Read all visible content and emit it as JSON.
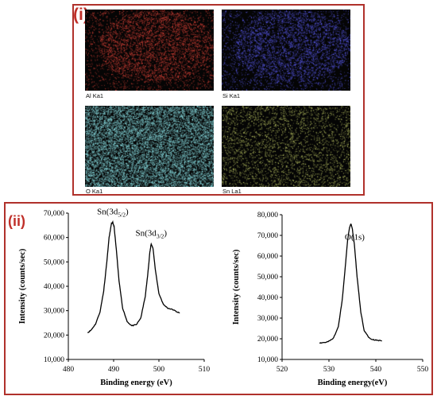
{
  "panel_i": {
    "label": "(i)",
    "maps": [
      {
        "label": "Al Ka1",
        "color": "#e0453a"
      },
      {
        "label": "Si Ka1",
        "color": "#5b5cf0"
      },
      {
        "label": "O Ka1",
        "color": "#8fe6ea"
      },
      {
        "label": "Sn La1",
        "color": "#c9d36b"
      }
    ]
  },
  "panel_ii": {
    "label": "(ii)"
  },
  "chart_data": [
    {
      "type": "line",
      "title": "",
      "xlabel": "Binding energy (eV)",
      "ylabel": "Intensity (counts/sec)",
      "xlim": [
        480,
        510
      ],
      "ylim": [
        10000,
        70000
      ],
      "xticks": [
        "480",
        "490",
        "500",
        "510"
      ],
      "yticks": [
        "10,000",
        "20,000",
        "30,000",
        "40,000",
        "50,000",
        "60,000",
        "70,000"
      ],
      "annotations": [
        {
          "text": "Sn(3d",
          "sub": "5/2",
          "tail": ")",
          "x": 489.8
        },
        {
          "text": "Sn(3d",
          "sub": "3/2",
          "tail": ")",
          "x": 498.3
        }
      ],
      "series": [
        {
          "x": [
            484.3,
            485.0,
            486.0,
            487.0,
            487.8,
            488.5,
            489.0,
            489.5,
            489.8,
            490.1,
            490.6,
            491.2,
            492.0,
            493.0,
            494.0,
            495.0,
            496.0,
            497.0,
            497.6,
            498.0,
            498.3,
            498.7,
            499.2,
            500.0,
            501.0,
            502.0,
            503.0,
            504.0,
            504.6
          ],
          "y": [
            21000,
            22000,
            24500,
            29500,
            38000,
            50000,
            60000,
            65500,
            66200,
            64500,
            55000,
            42000,
            31000,
            25500,
            23800,
            24200,
            27000,
            36000,
            46000,
            54000,
            57500,
            55500,
            47000,
            37000,
            32500,
            31000,
            30500,
            29500,
            29000
          ]
        }
      ]
    },
    {
      "type": "line",
      "title": "",
      "xlabel": "Binding energy(eV)",
      "ylabel": "Intensity (counts/sec)",
      "xlim": [
        520,
        550
      ],
      "ylim": [
        10000,
        80000
      ],
      "xticks": [
        "520",
        "530",
        "540",
        "550"
      ],
      "yticks": [
        "10,000",
        "20,000",
        "30,000",
        "40,000",
        "50,000",
        "60,000",
        "70,000",
        "80,000"
      ],
      "annotations": [
        {
          "text": "O(1s)",
          "sub": "",
          "tail": "",
          "x": 535.5
        }
      ],
      "series": [
        {
          "x": [
            528.0,
            529.0,
            530.0,
            531.0,
            532.0,
            532.8,
            533.5,
            534.0,
            534.4,
            534.7,
            535.0,
            535.5,
            536.0,
            536.8,
            537.5,
            538.5,
            539.5,
            540.5,
            541.3
          ],
          "y": [
            18000,
            18200,
            18800,
            20500,
            26000,
            38000,
            55000,
            68000,
            74000,
            75500,
            73000,
            64000,
            50000,
            33000,
            24000,
            20500,
            19500,
            19200,
            19000
          ]
        }
      ]
    }
  ]
}
